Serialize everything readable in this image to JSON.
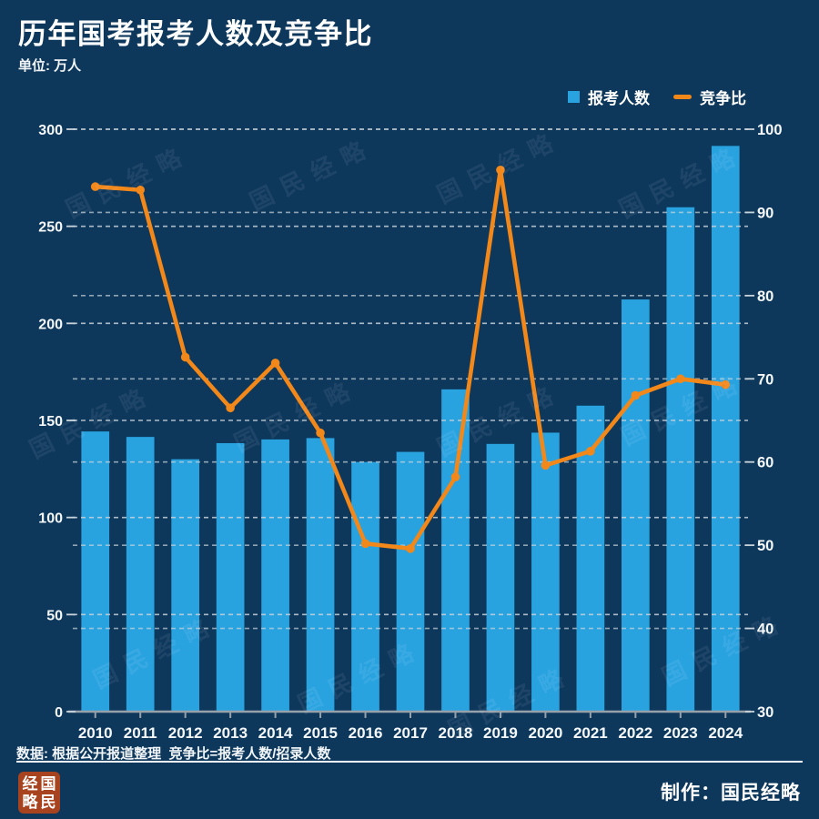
{
  "header": {
    "title": "历年国考报考人数及竞争比",
    "unit": "单位: 万人"
  },
  "legend": {
    "bar_label": "报考人数",
    "line_label": "竞争比"
  },
  "colors": {
    "background": "#0d385c",
    "bar": "#29a3e0",
    "line": "#f2871a",
    "grid": "#c9d3da",
    "axis": "#97a1a9",
    "text": "#ffffff",
    "seal": "#a8431f"
  },
  "watermark": {
    "text": "国民经略"
  },
  "footer": {
    "source": "数据: 根据公开报道整理  竞争比=报考人数/招录人数",
    "credit": "制作：国民经略",
    "seal_chars": [
      "经",
      "国",
      "略",
      "民"
    ]
  },
  "chart_data": {
    "type": "bar+line",
    "title": "历年国考报考人数及竞争比",
    "unit_note": "单位: 万人",
    "categories": [
      "2010",
      "2011",
      "2012",
      "2013",
      "2014",
      "2015",
      "2016",
      "2017",
      "2018",
      "2019",
      "2020",
      "2021",
      "2022",
      "2023",
      "2024"
    ],
    "series": [
      {
        "name": "报考人数",
        "type": "bar",
        "axis": "left",
        "color": "#29a3e0",
        "values": [
          144.3,
          141.5,
          130.0,
          138.3,
          140.2,
          140.9,
          128.6,
          133.8,
          166.0,
          137.9,
          143.7,
          157.6,
          212.3,
          259.8,
          291.4
        ]
      },
      {
        "name": "竞争比",
        "type": "line",
        "axis": "right",
        "color": "#f2871a",
        "values": [
          93.1,
          92.7,
          72.6,
          66.5,
          71.9,
          63.5,
          50.2,
          49.6,
          58.2,
          95.1,
          59.6,
          61.3,
          68.0,
          70.0,
          69.3
        ]
      }
    ],
    "left_axis": {
      "min": 0,
      "max": 300,
      "step": 50,
      "ticks": [
        "0",
        "50",
        "100",
        "150",
        "200",
        "250",
        "300"
      ]
    },
    "right_axis": {
      "min": 30,
      "max": 100,
      "step": 10,
      "ticks": [
        "30",
        "40",
        "50",
        "60",
        "70",
        "80",
        "90",
        "100"
      ]
    },
    "grid": "horizontal dashed, both axes",
    "legend_position": "top-right"
  }
}
